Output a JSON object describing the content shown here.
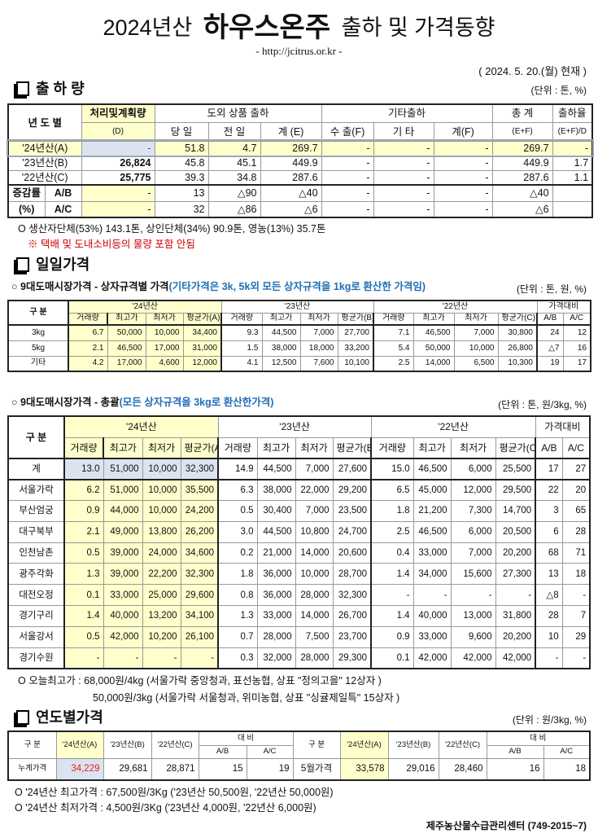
{
  "header": {
    "title_pre": "2024년산",
    "title_main": "하우스온주",
    "title_post": "출하 및 가격동향",
    "url": "- http://jcitrus.or.kr -",
    "date": "( 2024. 5. 20.(월) 현재 )"
  },
  "shipment": {
    "title": "출 하 량",
    "unit": "(단위 : 톤, %)",
    "head": {
      "year": "년 도 별",
      "plan": "처리및계획량",
      "plan_sub": "(D)",
      "domestic": "도외 상품 출하",
      "other": "기타출하",
      "total": "총  계",
      "total_sub": "(E+F)",
      "ratio": "출하율",
      "ratio_sub": "(E+F)/D",
      "today": "당 일",
      "prev": "전 일",
      "sum_e": "계 (E)",
      "export": "수 출(F)",
      "etc": "기 타",
      "sum_f": "계(F)"
    },
    "rows": [
      [
        "'24년산(A)",
        "-",
        "51.8",
        "4.7",
        "269.7",
        "-",
        "-",
        "-",
        "269.7",
        "-"
      ],
      [
        "'23년산(B)",
        "26,824",
        "45.8",
        "45.1",
        "449.9",
        "-",
        "-",
        "-",
        "449.9",
        "1.7"
      ],
      [
        "'22년산(C)",
        "25,775",
        "39.3",
        "34.8",
        "287.6",
        "-",
        "-",
        "-",
        "287.6",
        "1.1"
      ]
    ],
    "change_label": "증감률",
    "change_unit": "(%)",
    "change_rows": [
      [
        "A/B",
        "-",
        "13",
        "△90",
        "△40",
        "-",
        "-",
        "-",
        "△40",
        ""
      ],
      [
        "A/C",
        "-",
        "32",
        "△86",
        "△6",
        "-",
        "-",
        "-",
        "△6",
        ""
      ]
    ],
    "notes": [
      "O 생산자단체(53%) 143.1톤, 상인단체(34%) 90.9톤, 영농(13%) 35.7톤",
      "※ 택배 및 도내소비등의 물량 포함 안됨"
    ]
  },
  "daily": {
    "title": "일일가격",
    "by_size": {
      "title": "○ 9대도매시장가격 - 상자규격별 가격",
      "title_note": "(기타가격은 3k, 5k외 모든 상자규격을 1kg로 환산한 가격임)",
      "unit": "(단위 : 톤, 원, %)",
      "head": {
        "category": "구  분",
        "y24": "'24년산",
        "y23": "'23년산",
        "y22": "'22년산",
        "compare": "가격대비",
        "cols": [
          "거래량",
          "최고가",
          "최저가",
          "평균가(A)",
          "거래량",
          "최고가",
          "최저가",
          "평균가(B)",
          "거래량",
          "최고가",
          "최저가",
          "평균가(C)",
          "A/B",
          "A/C"
        ]
      },
      "rows": [
        [
          "3kg",
          "6.7",
          "50,000",
          "10,000",
          "34,400",
          "9.3",
          "44,500",
          "7,000",
          "27,700",
          "7.1",
          "46,500",
          "7,000",
          "30,800",
          "24",
          "12"
        ],
        [
          "5kg",
          "2.1",
          "46,500",
          "17,000",
          "31,000",
          "1.5",
          "38,000",
          "18,000",
          "33,200",
          "5.4",
          "50,000",
          "10,000",
          "26,800",
          "△7",
          "16"
        ],
        [
          "기타",
          "4.2",
          "17,000",
          "4,600",
          "12,000",
          "4.1",
          "12,500",
          "7,600",
          "10,100",
          "2.5",
          "14,000",
          "6,500",
          "10,300",
          "19",
          "17"
        ]
      ]
    },
    "overall": {
      "title": "○ 9대도매시장가격 - 총괄",
      "title_note": "(모든 상자규격을 3kg로 환산한가격)",
      "unit": "(단위 : 톤, 원/3kg, %)",
      "head": {
        "category": "구  분",
        "y24": "'24년산",
        "y23": "'23년산",
        "y22": "'22년산",
        "compare": "가격대비",
        "cols": [
          "거래량",
          "최고가",
          "최저가",
          "평균가(A)",
          "거래량",
          "최고가",
          "최저가",
          "평균가(B)",
          "거래량",
          "최고가",
          "최저가",
          "평균가(C)",
          "A/B",
          "A/C"
        ]
      },
      "rows": [
        [
          "계",
          "13.0",
          "51,000",
          "10,000",
          "32,300",
          "14.9",
          "44,500",
          "7,000",
          "27,600",
          "15.0",
          "46,500",
          "6,000",
          "25,500",
          "17",
          "27"
        ],
        [
          "서울가락",
          "6.2",
          "51,000",
          "10,000",
          "35,500",
          "6.3",
          "38,000",
          "22,000",
          "29,200",
          "6.5",
          "45,000",
          "12,000",
          "29,500",
          "22",
          "20"
        ],
        [
          "부산엄궁",
          "0.9",
          "44,000",
          "10,000",
          "24,200",
          "0.5",
          "30,400",
          "7,000",
          "23,500",
          "1.8",
          "21,200",
          "7,300",
          "14,700",
          "3",
          "65"
        ],
        [
          "대구북부",
          "2.1",
          "49,000",
          "13,800",
          "26,200",
          "3.0",
          "44,500",
          "10,800",
          "24,700",
          "2.5",
          "46,500",
          "6,000",
          "20,500",
          "6",
          "28"
        ],
        [
          "인천남촌",
          "0.5",
          "39,000",
          "24,000",
          "34,600",
          "0.2",
          "21,000",
          "14,000",
          "20,600",
          "0.4",
          "33,000",
          "7,000",
          "20,200",
          "68",
          "71"
        ],
        [
          "광주각화",
          "1.3",
          "39,000",
          "22,200",
          "32,300",
          "1.8",
          "36,000",
          "10,000",
          "28,700",
          "1.4",
          "34,000",
          "15,600",
          "27,300",
          "13",
          "18"
        ],
        [
          "대전오정",
          "0.1",
          "33,000",
          "25,000",
          "29,600",
          "0.8",
          "36,000",
          "28,000",
          "32,300",
          "-",
          "-",
          "-",
          "-",
          "△8",
          "-"
        ],
        [
          "경기구리",
          "1.4",
          "40,000",
          "13,200",
          "34,100",
          "1.3",
          "33,000",
          "14,000",
          "26,700",
          "1.4",
          "40,000",
          "13,000",
          "31,800",
          "28",
          "7"
        ],
        [
          "서울강서",
          "0.5",
          "42,000",
          "10,200",
          "26,100",
          "0.7",
          "28,000",
          "7,500",
          "23,700",
          "0.9",
          "33,000",
          "9,600",
          "20,200",
          "10",
          "29"
        ],
        [
          "경기수원",
          "-",
          "-",
          "-",
          "-",
          "0.3",
          "32,000",
          "28,000",
          "29,300",
          "0.1",
          "42,000",
          "42,000",
          "42,000",
          "-",
          "-"
        ]
      ],
      "notes": [
        "O 오늘최고가 : 68,000원/4kg (서울가락  중앙청과,  표선농협,  상표 \"정의고을\"  12상자 )",
        "50,000원/3kg (서울가락  서울청과,  위미농협,  상표 \"싱귤제일특\"  15상자 )"
      ]
    }
  },
  "yearly": {
    "title": "연도별가격",
    "unit": "(단위 : 원/3kg, %)",
    "head": {
      "category": "구  분",
      "y24": "'24년산(A)",
      "y23": "'23년산(B)",
      "y22": "'22년산(C)",
      "compare": "대    비",
      "ab": "A/B",
      "ac": "A/C"
    },
    "cumulative": [
      "누계가격",
      "34,229",
      "29,681",
      "28,871",
      "15",
      "19"
    ],
    "monthly": [
      "5월가격",
      "33,578",
      "29,016",
      "28,460",
      "16",
      "18"
    ],
    "notes": [
      "O  '24년산 최고가격 : 67,500원/3Kg ('23년산 50,500원,  '22년산 50,000원)",
      "O  '24년산 최저가격 :   4,500원/3Kg ('23년산   4,000원,  '22년산  6,000원)"
    ],
    "footer": "제주농산물수급관리센터 (749-2015~7)"
  },
  "colors": {
    "highlight_yellow": "#ffffcc",
    "highlight_blue": "#dce3f0",
    "note_red": "#cc0000",
    "title_blue": "#1f6fb5"
  }
}
